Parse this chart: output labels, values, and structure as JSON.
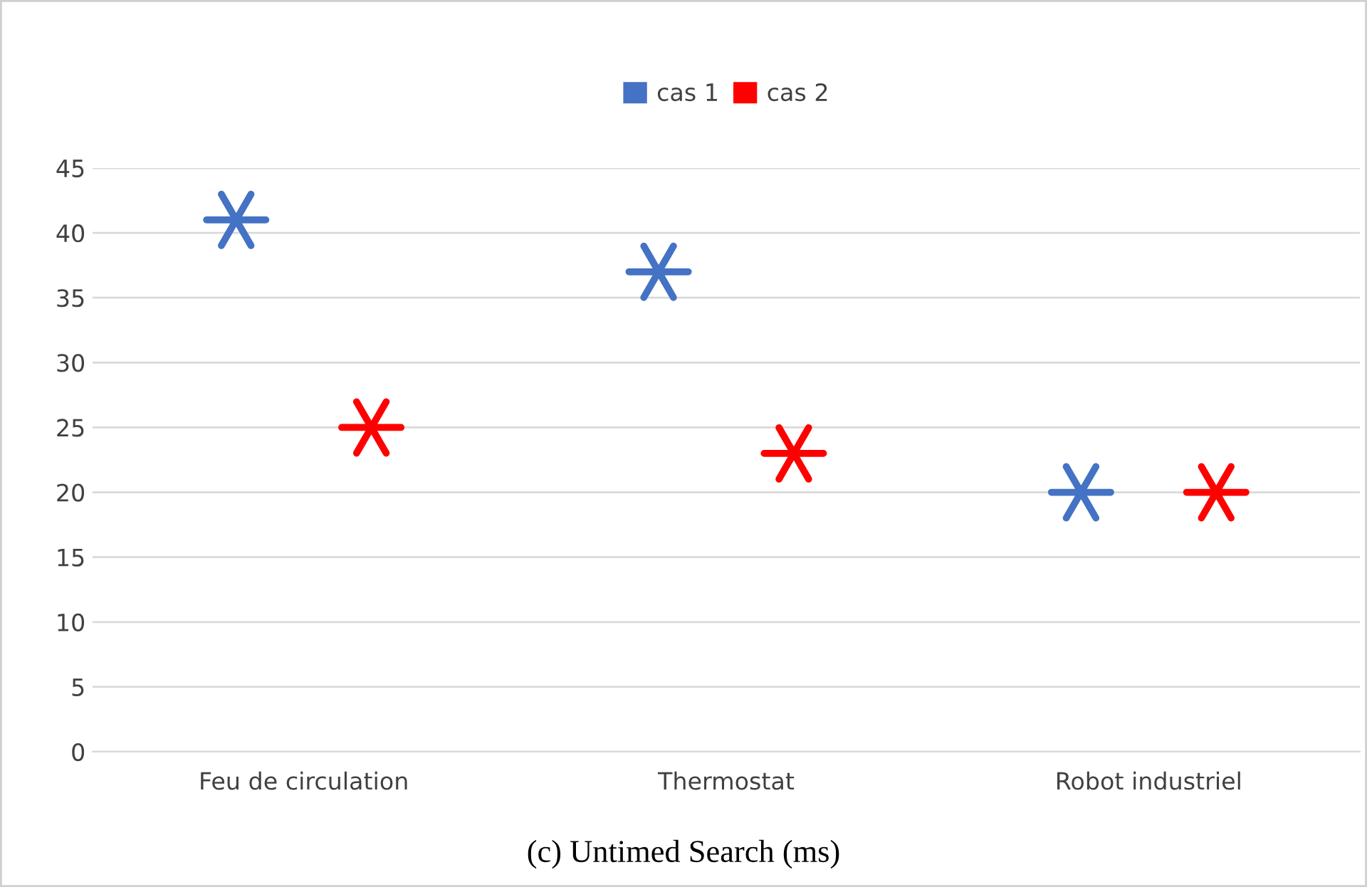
{
  "chart_data": {
    "type": "scatter",
    "title": "(c) Untimed Search (ms)",
    "categories": [
      "Feu de circulation",
      "Thermostat",
      "Robot industriel"
    ],
    "series": [
      {
        "name": "cas 1",
        "color": "#4472c4",
        "values": [
          41,
          37,
          20
        ]
      },
      {
        "name": "cas 2",
        "color": "#ff0000",
        "values": [
          25,
          23,
          20
        ]
      }
    ],
    "ylim": [
      0,
      45
    ],
    "yticks": [
      0,
      5,
      10,
      15,
      20,
      25,
      30,
      35,
      40,
      45
    ],
    "grid": "y",
    "legend": "top",
    "marker": "cross"
  }
}
